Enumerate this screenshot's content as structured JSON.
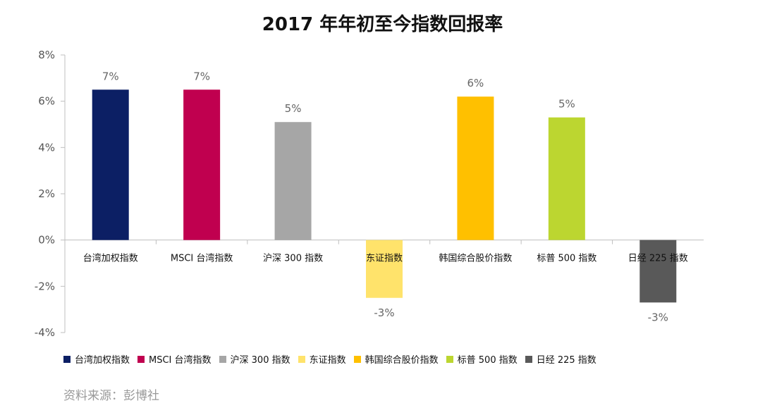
{
  "chart_data": {
    "type": "bar",
    "title": "2017 年年初至今指数回报率",
    "categories": [
      "台湾加权指数",
      "MSCI 台湾指数",
      "沪深 300 指数",
      "东证指数",
      "韩国综合股价指数",
      "标普 500 指数",
      "日经 225 指数"
    ],
    "values": [
      6.5,
      6.5,
      5.1,
      -2.5,
      6.2,
      5.3,
      -2.7
    ],
    "data_labels": [
      "7%",
      "7%",
      "5%",
      "-3%",
      "6%",
      "5%",
      "-3%"
    ],
    "colors": [
      "#0c1f64",
      "#c0004f",
      "#a6a6a6",
      "#ffe36b",
      "#ffc000",
      "#bcd630",
      "#595959"
    ],
    "ylim": [
      -4,
      8
    ],
    "yticks": [
      8,
      6,
      4,
      2,
      0,
      -2,
      -4
    ],
    "ytick_labels": [
      "8%",
      "6%",
      "4%",
      "2%",
      "0%",
      "-2%",
      "-4%"
    ],
    "xlabel": "",
    "ylabel": "",
    "grid": false,
    "legend": "bottom"
  },
  "source": "资料来源：彭博社"
}
